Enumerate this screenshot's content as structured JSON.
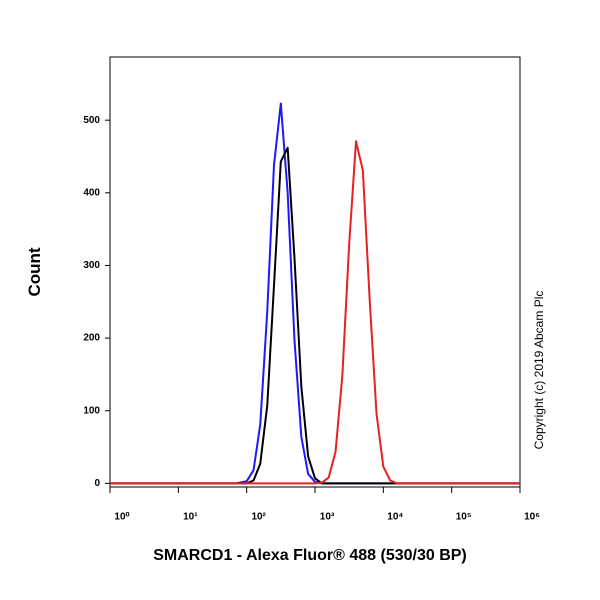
{
  "chart_data": {
    "type": "line",
    "x_label": "SMARCD1 - Alexa Fluor® 488 (530/30 BP)",
    "y_label": "Count",
    "annotation": "Copyright (c) 2019 Abcam Plc",
    "x_log": true,
    "x": [
      1,
      10,
      70,
      100,
      126,
      158,
      200,
      251,
      316,
      398,
      501,
      631,
      794,
      1000,
      1259,
      1585,
      1995,
      2512,
      3162,
      3981,
      5012,
      6310,
      7943,
      10000,
      12589,
      15849,
      100000,
      1000000
    ],
    "series": [
      {
        "color": "#1a1aff",
        "values": [
          0,
          0,
          0,
          3,
          18,
          81,
          236,
          438,
          523,
          400,
          197,
          64,
          13,
          2,
          0,
          0,
          0,
          0,
          0,
          0,
          0,
          0,
          0,
          0,
          0,
          0,
          0,
          0
        ]
      },
      {
        "color": "#000000",
        "values": [
          0,
          0,
          0,
          0,
          4,
          27,
          107,
          272,
          443,
          462,
          310,
          133,
          37,
          7,
          0,
          0,
          0,
          0,
          0,
          0,
          0,
          0,
          0,
          0,
          0,
          0,
          0,
          0
        ]
      },
      {
        "color": "#e82020",
        "values": [
          0,
          0,
          0,
          0,
          0,
          0,
          0,
          0,
          0,
          0,
          0,
          0,
          0,
          0,
          1,
          8,
          43,
          148,
          329,
          471,
          431,
          253,
          96,
          23,
          4,
          0,
          0,
          0
        ]
      }
    ],
    "xlim": [
      1,
      1000000
    ],
    "xticks": [
      {
        "value": 1,
        "label": "10⁰"
      },
      {
        "value": 10,
        "label": "10¹"
      },
      {
        "value": 100,
        "label": "10²"
      },
      {
        "value": 1000,
        "label": "10³"
      },
      {
        "value": 10000,
        "label": "10⁴"
      },
      {
        "value": 100000,
        "label": "10⁵"
      },
      {
        "value": 1000000,
        "label": "10⁶"
      }
    ],
    "ylim": [
      -5,
      587
    ],
    "yticks": [
      0,
      100,
      200,
      300,
      400,
      500
    ]
  }
}
